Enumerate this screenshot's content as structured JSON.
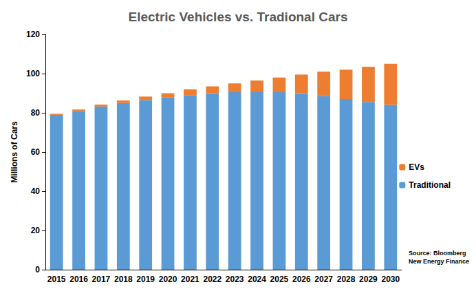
{
  "chart_data": {
    "type": "bar",
    "title": "Electric Vehicles vs. Tradional Cars",
    "y_label": "Millions of Cars",
    "annotation": "Source: Bloomberg\nNew Energy Finance",
    "categories": [
      "2015",
      "2016",
      "2017",
      "2018",
      "2019",
      "2020",
      "2021",
      "2022",
      "2023",
      "2024",
      "2025",
      "2026",
      "2027",
      "2028",
      "2029",
      "2030"
    ],
    "series": [
      {
        "name": "Traditional",
        "color": "#5b9bd5",
        "values": [
          79,
          81,
          83.2,
          85,
          86.5,
          88,
          89,
          90,
          90.5,
          90.5,
          90.5,
          90,
          88.5,
          87,
          85.5,
          84
        ]
      },
      {
        "name": "EVs",
        "color": "#ed7d31",
        "values": [
          0.5,
          0.7,
          1,
          1.3,
          1.8,
          2,
          3,
          3.5,
          4.5,
          6,
          7.5,
          9.5,
          12.5,
          15,
          18,
          21
        ]
      }
    ],
    "stacked": true,
    "ylim": [
      0,
      120
    ],
    "yticks": [
      0,
      20,
      40,
      60,
      80,
      100,
      120
    ],
    "grid": false,
    "legend": "right"
  }
}
